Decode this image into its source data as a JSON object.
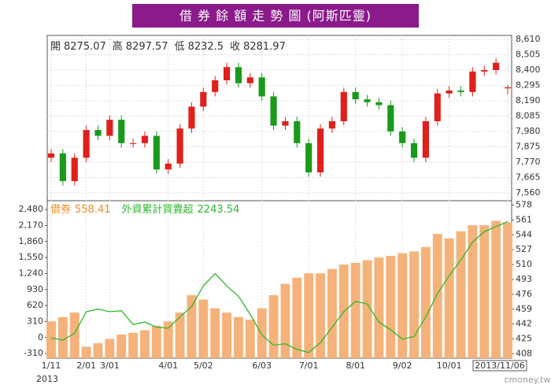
{
  "chart_data": [
    {
      "type": "candlestick",
      "title": "借 券 餘 額 走 勢 圖 (阿斯匹靈)",
      "ohlc_labels": [
        "開",
        "高",
        "低",
        "收"
      ],
      "up_color": "#e0201c",
      "down_color": "#1a9a1a",
      "open": [
        7800,
        7830,
        7640,
        7800,
        7990,
        7950,
        8060,
        7900,
        7900,
        7950,
        7720,
        7760,
        8000,
        8150,
        8250,
        8330,
        8420,
        8310,
        8350,
        8220,
        8020,
        8050,
        7900,
        7700,
        8000,
        8050,
        8250,
        8200,
        8180,
        8160,
        7980,
        7900,
        7800,
        8050,
        8240,
        8260,
        8250,
        8390,
        8400,
        8275.07
      ],
      "high": [
        7860,
        7860,
        7830,
        8020,
        8020,
        8090,
        8090,
        7930,
        7980,
        7980,
        7790,
        8030,
        8180,
        8280,
        8360,
        8450,
        8450,
        8380,
        8380,
        8250,
        8080,
        8080,
        7930,
        8030,
        8080,
        8280,
        8280,
        8230,
        8210,
        8190,
        8010,
        7930,
        8080,
        8270,
        8290,
        8290,
        8420,
        8430,
        8480,
        8297.57
      ],
      "low": [
        7770,
        7610,
        7610,
        7770,
        7920,
        7920,
        7870,
        7870,
        7870,
        7690,
        7690,
        7730,
        7970,
        8120,
        8220,
        8300,
        8280,
        8280,
        8190,
        7990,
        7990,
        7870,
        7670,
        7670,
        7970,
        8020,
        8170,
        8150,
        8130,
        7950,
        7870,
        7770,
        7770,
        8020,
        8210,
        8220,
        8220,
        8360,
        8370,
        8232.5
      ],
      "close": [
        7830,
        7640,
        7800,
        7990,
        7950,
        8060,
        7900,
        7900,
        7950,
        7720,
        7760,
        8000,
        8150,
        8250,
        8330,
        8420,
        8310,
        8350,
        8220,
        8020,
        8050,
        7900,
        7700,
        8000,
        8050,
        8250,
        8200,
        8180,
        8160,
        7980,
        7900,
        7800,
        8050,
        8240,
        8260,
        8250,
        8390,
        8400,
        8450,
        8281.97
      ],
      "ylim": [
        7506,
        8637
      ],
      "yticks": [
        {
          "value": 8610,
          "label": "8,610"
        },
        {
          "value": 8505,
          "label": "8,505"
        },
        {
          "value": 8400,
          "label": "8,400"
        },
        {
          "value": 8295,
          "label": "8,295"
        },
        {
          "value": 8190,
          "label": "8,190"
        },
        {
          "value": 8085,
          "label": "8,085"
        },
        {
          "value": 7980,
          "label": "7,980"
        },
        {
          "value": 7875,
          "label": "7,875"
        },
        {
          "value": 7770,
          "label": "7,770"
        },
        {
          "value": 7665,
          "label": "7,665"
        },
        {
          "value": 7560,
          "label": "7,560"
        }
      ],
      "grid": true
    },
    {
      "type": "bar_line",
      "watermark": "cmoney.tw",
      "year_label": "2013",
      "categories": [
        "1/11",
        null,
        null,
        "2/01",
        null,
        "3/01",
        null,
        null,
        null,
        null,
        "4/01",
        null,
        null,
        "5/02",
        null,
        null,
        null,
        null,
        "6/03",
        null,
        null,
        null,
        "7/01",
        null,
        null,
        null,
        "8/01",
        null,
        null,
        null,
        "9/02",
        null,
        null,
        null,
        "10/01",
        null,
        null,
        null,
        null,
        "2013/11/06"
      ],
      "series": [
        {
          "name": "借券",
          "color": "#f5b27a",
          "text_color": "#f08a24",
          "axis": "y2",
          "kind": "bar",
          "values": [
            445,
            450,
            455,
            416,
            420,
            425,
            430,
            432,
            435,
            440,
            445,
            455,
            475,
            470,
            460,
            455,
            450,
            447,
            460,
            475,
            488,
            495,
            500,
            500,
            505,
            510,
            512,
            515,
            518,
            520,
            523,
            525,
            530,
            545,
            540,
            548,
            555,
            555,
            560,
            558.41
          ]
        },
        {
          "name": "外資累計買賣超",
          "color": "#2db82d",
          "text_color": "#2db82d",
          "axis": "y",
          "kind": "line",
          "values": [
            -10,
            -50,
            80,
            500,
            550,
            500,
            520,
            250,
            300,
            200,
            180,
            400,
            600,
            1000,
            1240,
            1000,
            800,
            450,
            50,
            -150,
            -120,
            -230,
            -290,
            -100,
            200,
            500,
            700,
            650,
            300,
            150,
            -30,
            20,
            400,
            850,
            1200,
            1500,
            1850,
            2050,
            2150,
            2243.54
          ]
        }
      ],
      "ylim": [
        -400,
        2650
      ],
      "yticks": [
        {
          "value": 2480,
          "label": "2,480"
        },
        {
          "value": 2170,
          "label": "2,170"
        },
        {
          "value": 1860,
          "label": "1,860"
        },
        {
          "value": 1550,
          "label": "1,550"
        },
        {
          "value": 1240,
          "label": "1,240"
        },
        {
          "value": 930,
          "label": "930"
        },
        {
          "value": 620,
          "label": "620"
        },
        {
          "value": 310,
          "label": "310"
        },
        0,
        -310
      ],
      "y2lim": [
        403,
        583
      ],
      "y2ticks": [
        578,
        561,
        544,
        527,
        510,
        493,
        476,
        459,
        442,
        425,
        408
      ],
      "grid": true
    }
  ]
}
